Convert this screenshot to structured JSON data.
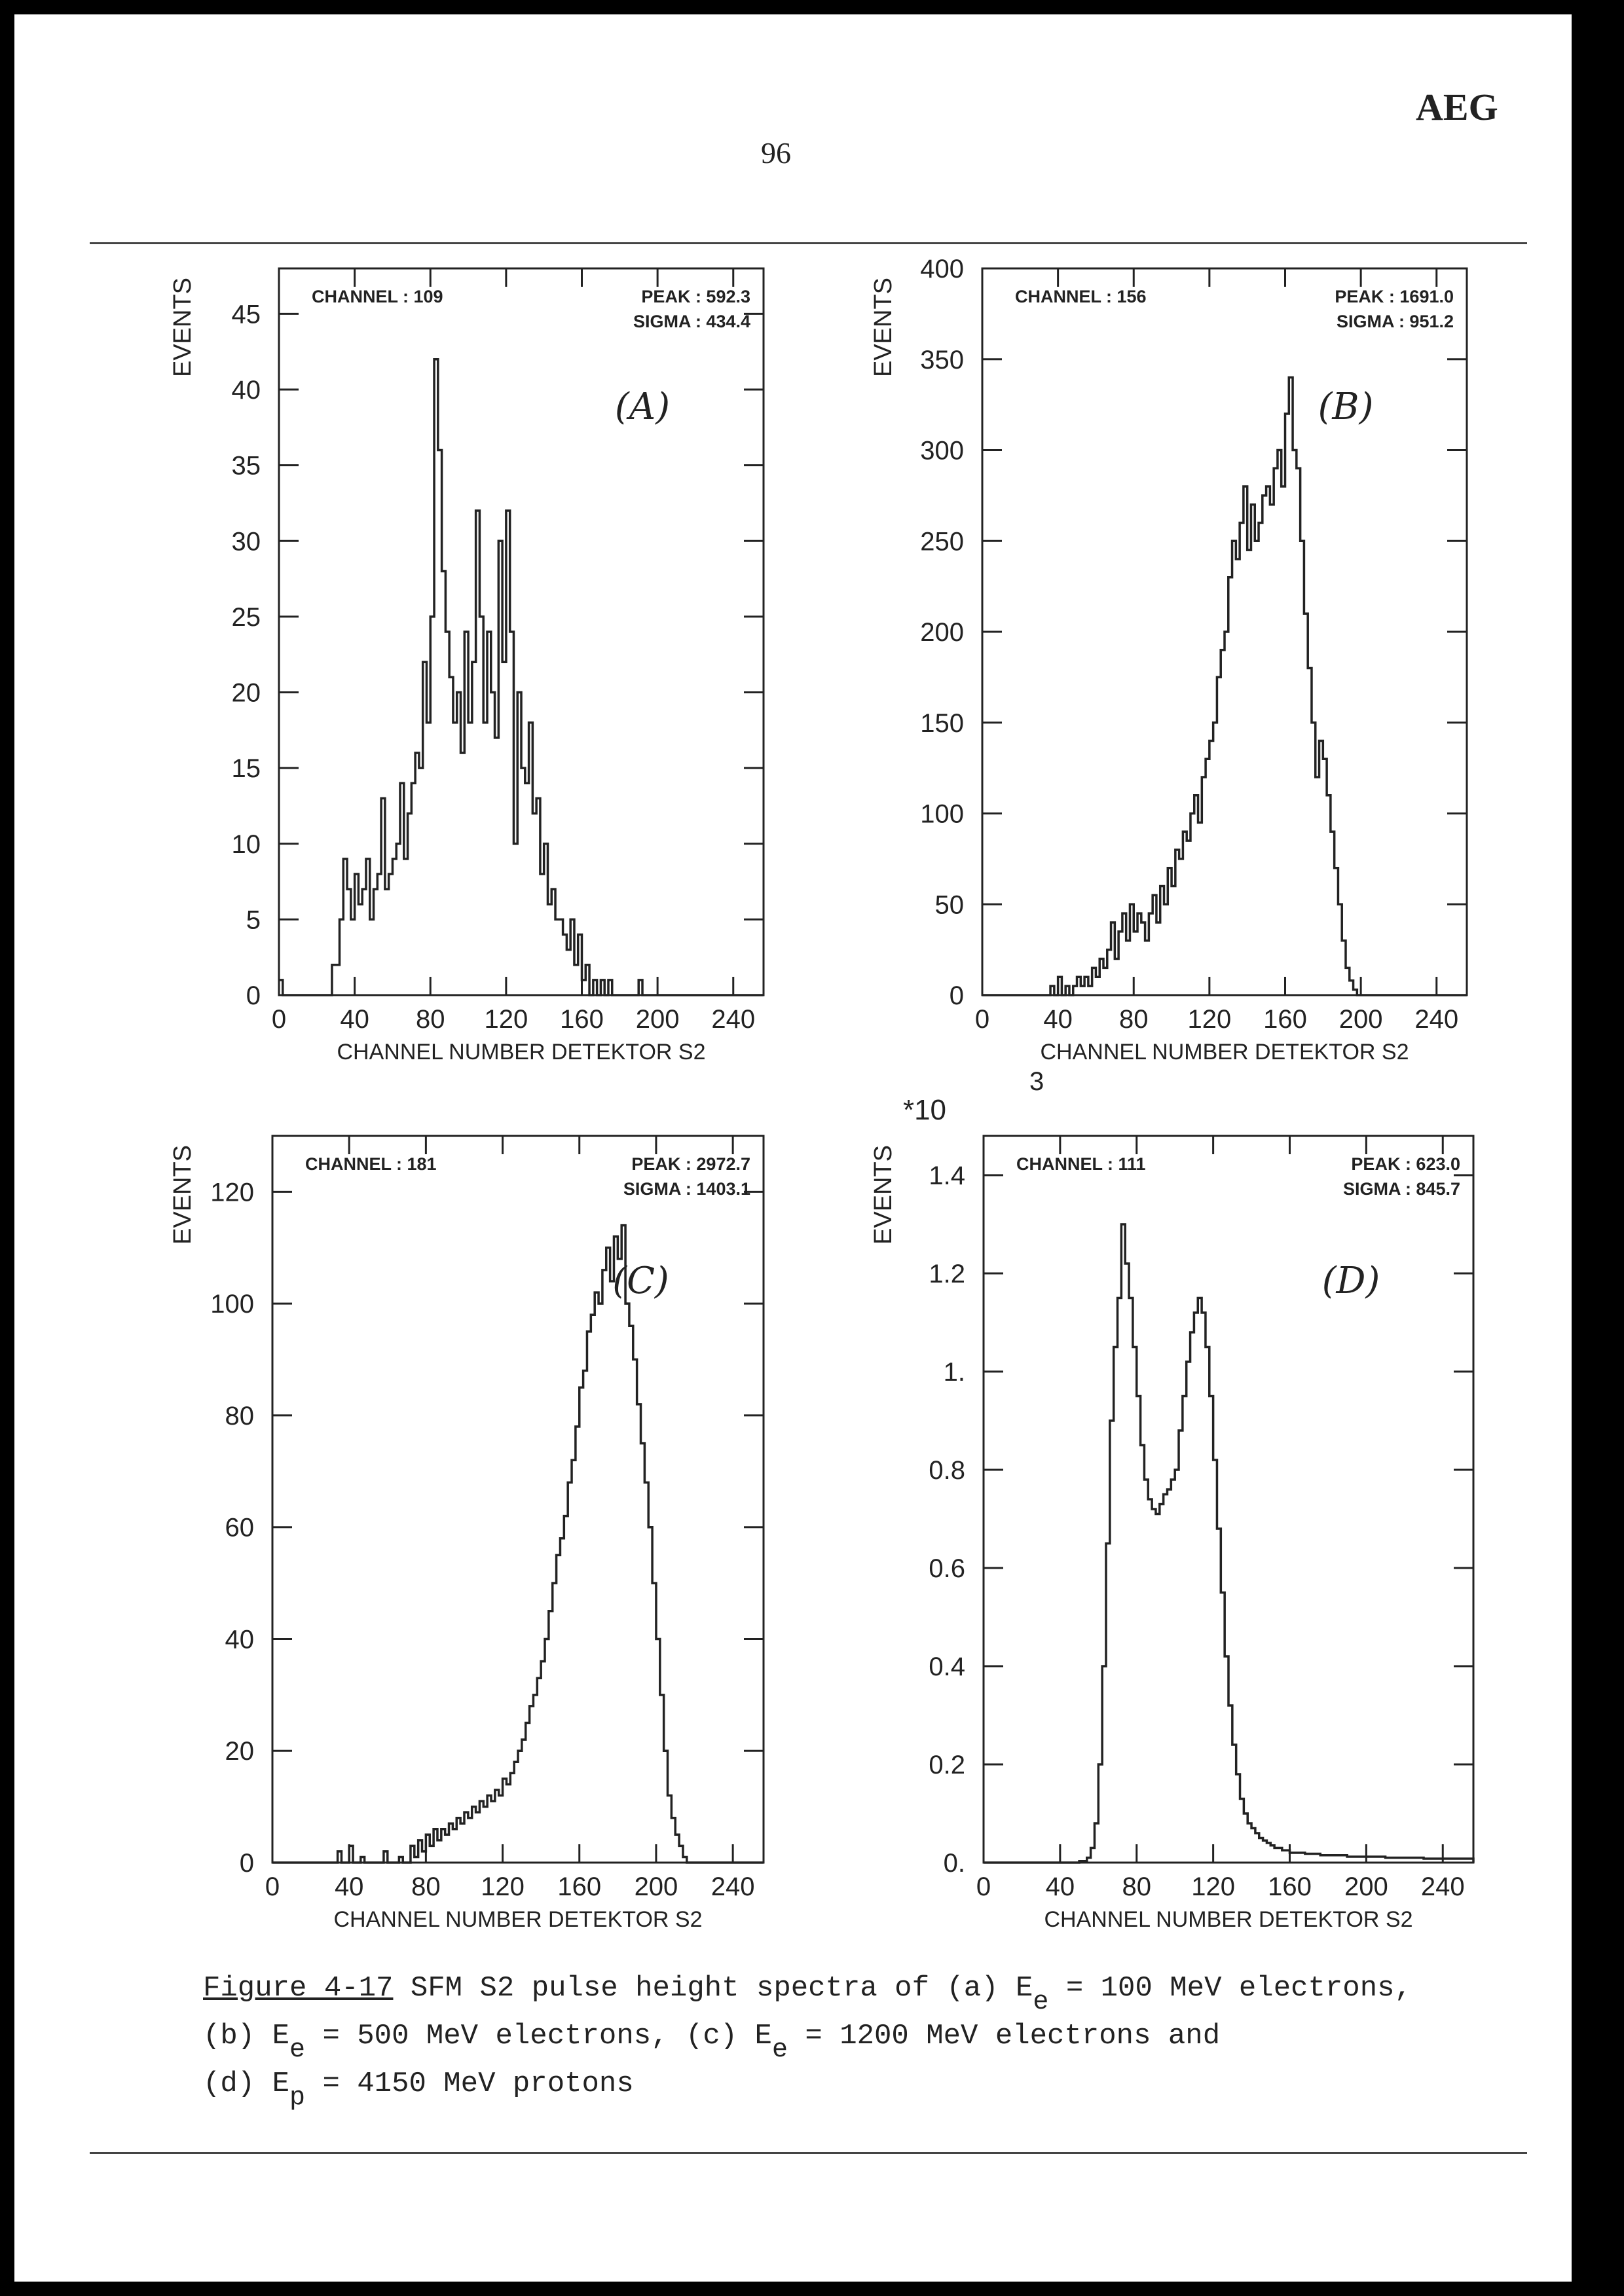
{
  "header": {
    "brand": "AEG",
    "page_number": "96"
  },
  "caption": {
    "fig_label": "Figure 4-17",
    "line1_text": " SFM S2 pulse height spectra of (a) E",
    "line1_sub": "e",
    "line1_end": " = 100 MeV electrons,",
    "line2_text": "(b) E",
    "line2_sub": "e",
    "line2_mid": " = 500 MeV electrons, (c) E",
    "line2_sub2": "e",
    "line2_end": " = 1200 MeV electrons and",
    "line3_text": "(d) E",
    "line3_sub": "p",
    "line3_end": " = 4150 MeV protons"
  },
  "colors": {
    "ink": "#222222",
    "paper": "#ffffff",
    "frame": "#000000"
  },
  "chart_data": [
    {
      "type": "histogram",
      "panel_label": "(A)",
      "ylabel": "EVENTS",
      "xlabel": "CHANNEL NUMBER DETEKTOR S2",
      "channel_text": "CHANNEL : 109",
      "peak_text": "PEAK  :  592.3",
      "sigma_text": "SIGMA  :  434.4",
      "xlim": [
        0,
        256
      ],
      "ylim": [
        0,
        48
      ],
      "xticks": [
        0,
        40,
        80,
        120,
        160,
        200,
        240
      ],
      "yticks": [
        0,
        5,
        10,
        15,
        20,
        25,
        30,
        35,
        40,
        45
      ],
      "ytick_labels": [
        "0",
        "5",
        "10",
        "15",
        "20",
        "25",
        "30",
        "35",
        "40",
        "45"
      ],
      "bins": [
        [
          0,
          1
        ],
        [
          2,
          0
        ],
        [
          28,
          2
        ],
        [
          32,
          5
        ],
        [
          34,
          9
        ],
        [
          36,
          7
        ],
        [
          38,
          5
        ],
        [
          40,
          8
        ],
        [
          42,
          6
        ],
        [
          44,
          7
        ],
        [
          46,
          9
        ],
        [
          48,
          5
        ],
        [
          50,
          7
        ],
        [
          52,
          8
        ],
        [
          54,
          13
        ],
        [
          56,
          7
        ],
        [
          58,
          8
        ],
        [
          60,
          9
        ],
        [
          62,
          10
        ],
        [
          64,
          14
        ],
        [
          66,
          9
        ],
        [
          68,
          12
        ],
        [
          70,
          14
        ],
        [
          72,
          16
        ],
        [
          74,
          15
        ],
        [
          76,
          22
        ],
        [
          78,
          18
        ],
        [
          80,
          25
        ],
        [
          82,
          42
        ],
        [
          84,
          36
        ],
        [
          86,
          28
        ],
        [
          88,
          24
        ],
        [
          90,
          21
        ],
        [
          92,
          18
        ],
        [
          94,
          20
        ],
        [
          96,
          16
        ],
        [
          98,
          24
        ],
        [
          100,
          18
        ],
        [
          102,
          22
        ],
        [
          104,
          32
        ],
        [
          106,
          25
        ],
        [
          108,
          18
        ],
        [
          110,
          24
        ],
        [
          112,
          20
        ],
        [
          114,
          17
        ],
        [
          116,
          30
        ],
        [
          118,
          22
        ],
        [
          120,
          32
        ],
        [
          122,
          24
        ],
        [
          124,
          10
        ],
        [
          126,
          20
        ],
        [
          128,
          15
        ],
        [
          130,
          14
        ],
        [
          132,
          18
        ],
        [
          134,
          12
        ],
        [
          136,
          13
        ],
        [
          138,
          8
        ],
        [
          140,
          10
        ],
        [
          142,
          6
        ],
        [
          144,
          7
        ],
        [
          146,
          5
        ],
        [
          148,
          5
        ],
        [
          150,
          4
        ],
        [
          152,
          3
        ],
        [
          154,
          5
        ],
        [
          156,
          2
        ],
        [
          158,
          4
        ],
        [
          160,
          1
        ],
        [
          162,
          2
        ],
        [
          164,
          0
        ],
        [
          166,
          1
        ],
        [
          168,
          0
        ],
        [
          170,
          1
        ],
        [
          172,
          0
        ],
        [
          174,
          1
        ],
        [
          176,
          0
        ],
        [
          190,
          1
        ],
        [
          192,
          0
        ],
        [
          256,
          0
        ]
      ]
    },
    {
      "type": "histogram",
      "panel_label": "(B)",
      "ylabel": "EVENTS",
      "xlabel": "CHANNEL NUMBER DETEKTOR S2",
      "channel_text": "CHANNEL : 156",
      "peak_text": "PEAK  : 1691.0",
      "sigma_text": "SIGMA  :  951.2",
      "xlim": [
        0,
        256
      ],
      "ylim": [
        0,
        400
      ],
      "xticks": [
        0,
        40,
        80,
        120,
        160,
        200,
        240
      ],
      "yticks": [
        0,
        50,
        100,
        150,
        200,
        250,
        300,
        350,
        400
      ],
      "ytick_labels": [
        "0",
        "50",
        "100",
        "150",
        "200",
        "250",
        "300",
        "350",
        "400"
      ],
      "bins": [
        [
          0,
          0
        ],
        [
          36,
          5
        ],
        [
          38,
          0
        ],
        [
          40,
          10
        ],
        [
          42,
          0
        ],
        [
          44,
          5
        ],
        [
          46,
          0
        ],
        [
          48,
          5
        ],
        [
          50,
          10
        ],
        [
          52,
          5
        ],
        [
          54,
          10
        ],
        [
          56,
          5
        ],
        [
          58,
          15
        ],
        [
          60,
          10
        ],
        [
          62,
          20
        ],
        [
          64,
          15
        ],
        [
          66,
          25
        ],
        [
          68,
          40
        ],
        [
          70,
          20
        ],
        [
          72,
          35
        ],
        [
          74,
          45
        ],
        [
          76,
          30
        ],
        [
          78,
          50
        ],
        [
          80,
          35
        ],
        [
          82,
          45
        ],
        [
          84,
          40
        ],
        [
          86,
          30
        ],
        [
          88,
          45
        ],
        [
          90,
          55
        ],
        [
          92,
          40
        ],
        [
          94,
          60
        ],
        [
          96,
          50
        ],
        [
          98,
          70
        ],
        [
          100,
          60
        ],
        [
          102,
          80
        ],
        [
          104,
          75
        ],
        [
          106,
          90
        ],
        [
          108,
          85
        ],
        [
          110,
          100
        ],
        [
          112,
          110
        ],
        [
          114,
          95
        ],
        [
          116,
          120
        ],
        [
          118,
          130
        ],
        [
          120,
          140
        ],
        [
          122,
          150
        ],
        [
          124,
          175
        ],
        [
          126,
          190
        ],
        [
          128,
          200
        ],
        [
          130,
          230
        ],
        [
          132,
          250
        ],
        [
          134,
          240
        ],
        [
          136,
          260
        ],
        [
          138,
          280
        ],
        [
          140,
          245
        ],
        [
          142,
          270
        ],
        [
          144,
          250
        ],
        [
          146,
          260
        ],
        [
          148,
          275
        ],
        [
          150,
          280
        ],
        [
          152,
          270
        ],
        [
          154,
          290
        ],
        [
          156,
          300
        ],
        [
          158,
          280
        ],
        [
          160,
          320
        ],
        [
          162,
          340
        ],
        [
          164,
          300
        ],
        [
          166,
          290
        ],
        [
          168,
          250
        ],
        [
          170,
          210
        ],
        [
          172,
          180
        ],
        [
          174,
          150
        ],
        [
          176,
          120
        ],
        [
          178,
          140
        ],
        [
          180,
          130
        ],
        [
          182,
          110
        ],
        [
          184,
          90
        ],
        [
          186,
          70
        ],
        [
          188,
          50
        ],
        [
          190,
          30
        ],
        [
          192,
          15
        ],
        [
          194,
          8
        ],
        [
          196,
          3
        ],
        [
          198,
          0
        ],
        [
          256,
          0
        ]
      ]
    },
    {
      "type": "histogram",
      "panel_label": "(C)",
      "ylabel": "EVENTS",
      "xlabel": "CHANNEL NUMBER DETEKTOR S2",
      "channel_text": "CHANNEL : 181",
      "peak_text": "PEAK  : 2972.7",
      "sigma_text": "SIGMA  : 1403.1",
      "xlim": [
        0,
        256
      ],
      "ylim": [
        0,
        130
      ],
      "xticks": [
        0,
        40,
        80,
        120,
        160,
        200,
        240
      ],
      "yticks": [
        0,
        20,
        40,
        60,
        80,
        100,
        120
      ],
      "ytick_labels": [
        "0",
        "20",
        "40",
        "60",
        "80",
        "100",
        "120"
      ],
      "bins": [
        [
          0,
          0
        ],
        [
          34,
          2
        ],
        [
          36,
          0
        ],
        [
          40,
          3
        ],
        [
          42,
          0
        ],
        [
          46,
          1
        ],
        [
          48,
          0
        ],
        [
          58,
          2
        ],
        [
          60,
          0
        ],
        [
          66,
          1
        ],
        [
          68,
          0
        ],
        [
          72,
          3
        ],
        [
          74,
          1
        ],
        [
          76,
          4
        ],
        [
          78,
          2
        ],
        [
          80,
          5
        ],
        [
          82,
          3
        ],
        [
          84,
          6
        ],
        [
          86,
          4
        ],
        [
          88,
          6
        ],
        [
          90,
          5
        ],
        [
          92,
          7
        ],
        [
          94,
          6
        ],
        [
          96,
          8
        ],
        [
          98,
          7
        ],
        [
          100,
          9
        ],
        [
          102,
          8
        ],
        [
          104,
          10
        ],
        [
          106,
          9
        ],
        [
          108,
          11
        ],
        [
          110,
          10
        ],
        [
          112,
          12
        ],
        [
          114,
          11
        ],
        [
          116,
          13
        ],
        [
          118,
          12
        ],
        [
          120,
          15
        ],
        [
          122,
          14
        ],
        [
          124,
          16
        ],
        [
          126,
          18
        ],
        [
          128,
          20
        ],
        [
          130,
          22
        ],
        [
          132,
          25
        ],
        [
          134,
          28
        ],
        [
          136,
          30
        ],
        [
          138,
          33
        ],
        [
          140,
          36
        ],
        [
          142,
          40
        ],
        [
          144,
          45
        ],
        [
          146,
          50
        ],
        [
          148,
          55
        ],
        [
          150,
          58
        ],
        [
          152,
          62
        ],
        [
          154,
          68
        ],
        [
          156,
          72
        ],
        [
          158,
          78
        ],
        [
          160,
          85
        ],
        [
          162,
          88
        ],
        [
          164,
          95
        ],
        [
          166,
          98
        ],
        [
          168,
          102
        ],
        [
          170,
          100
        ],
        [
          172,
          106
        ],
        [
          174,
          110
        ],
        [
          176,
          104
        ],
        [
          178,
          112
        ],
        [
          180,
          108
        ],
        [
          182,
          114
        ],
        [
          184,
          100
        ],
        [
          186,
          96
        ],
        [
          188,
          90
        ],
        [
          190,
          82
        ],
        [
          192,
          75
        ],
        [
          194,
          68
        ],
        [
          196,
          60
        ],
        [
          198,
          50
        ],
        [
          200,
          40
        ],
        [
          202,
          30
        ],
        [
          204,
          20
        ],
        [
          206,
          12
        ],
        [
          208,
          8
        ],
        [
          210,
          5
        ],
        [
          212,
          3
        ],
        [
          214,
          1
        ],
        [
          216,
          0
        ],
        [
          256,
          0
        ]
      ]
    },
    {
      "type": "histogram",
      "panel_label": "(D)",
      "ylabel": "EVENTS",
      "xlabel": "CHANNEL NUMBER DETEKTOR S2",
      "scale_text": "*10",
      "scale_exp": "3",
      "channel_text": "CHANNEL : 111",
      "peak_text": "PEAK  :  623.0",
      "sigma_text": "SIGMA  :  845.7",
      "xlim": [
        0,
        256
      ],
      "ylim": [
        0,
        1.48
      ],
      "xticks": [
        0,
        40,
        80,
        120,
        160,
        200,
        240
      ],
      "yticks": [
        0,
        0.2,
        0.4,
        0.6,
        0.8,
        1.0,
        1.2,
        1.4
      ],
      "ytick_labels": [
        "0.",
        "0.2",
        "0.4",
        "0.6",
        "0.8",
        "1.",
        "1.2",
        "1.4"
      ],
      "bins": [
        [
          0,
          0
        ],
        [
          50,
          0.003
        ],
        [
          54,
          0.01
        ],
        [
          56,
          0.03
        ],
        [
          58,
          0.08
        ],
        [
          60,
          0.2
        ],
        [
          62,
          0.4
        ],
        [
          64,
          0.65
        ],
        [
          66,
          0.9
        ],
        [
          68,
          1.05
        ],
        [
          70,
          1.15
        ],
        [
          72,
          1.3
        ],
        [
          74,
          1.22
        ],
        [
          76,
          1.15
        ],
        [
          78,
          1.05
        ],
        [
          80,
          0.95
        ],
        [
          82,
          0.85
        ],
        [
          84,
          0.78
        ],
        [
          86,
          0.74
        ],
        [
          88,
          0.72
        ],
        [
          90,
          0.71
        ],
        [
          92,
          0.73
        ],
        [
          94,
          0.75
        ],
        [
          96,
          0.76
        ],
        [
          98,
          0.78
        ],
        [
          100,
          0.8
        ],
        [
          102,
          0.88
        ],
        [
          104,
          0.95
        ],
        [
          106,
          1.02
        ],
        [
          108,
          1.08
        ],
        [
          110,
          1.12
        ],
        [
          112,
          1.15
        ],
        [
          114,
          1.12
        ],
        [
          116,
          1.05
        ],
        [
          118,
          0.95
        ],
        [
          120,
          0.82
        ],
        [
          122,
          0.68
        ],
        [
          124,
          0.55
        ],
        [
          126,
          0.42
        ],
        [
          128,
          0.32
        ],
        [
          130,
          0.24
        ],
        [
          132,
          0.18
        ],
        [
          134,
          0.13
        ],
        [
          136,
          0.1
        ],
        [
          138,
          0.08
        ],
        [
          140,
          0.07
        ],
        [
          142,
          0.06
        ],
        [
          144,
          0.05
        ],
        [
          146,
          0.045
        ],
        [
          148,
          0.04
        ],
        [
          150,
          0.035
        ],
        [
          152,
          0.03
        ],
        [
          156,
          0.025
        ],
        [
          160,
          0.02
        ],
        [
          168,
          0.018
        ],
        [
          176,
          0.015
        ],
        [
          190,
          0.012
        ],
        [
          210,
          0.01
        ],
        [
          230,
          0.008
        ],
        [
          250,
          0.008
        ],
        [
          256,
          0
        ]
      ]
    }
  ]
}
